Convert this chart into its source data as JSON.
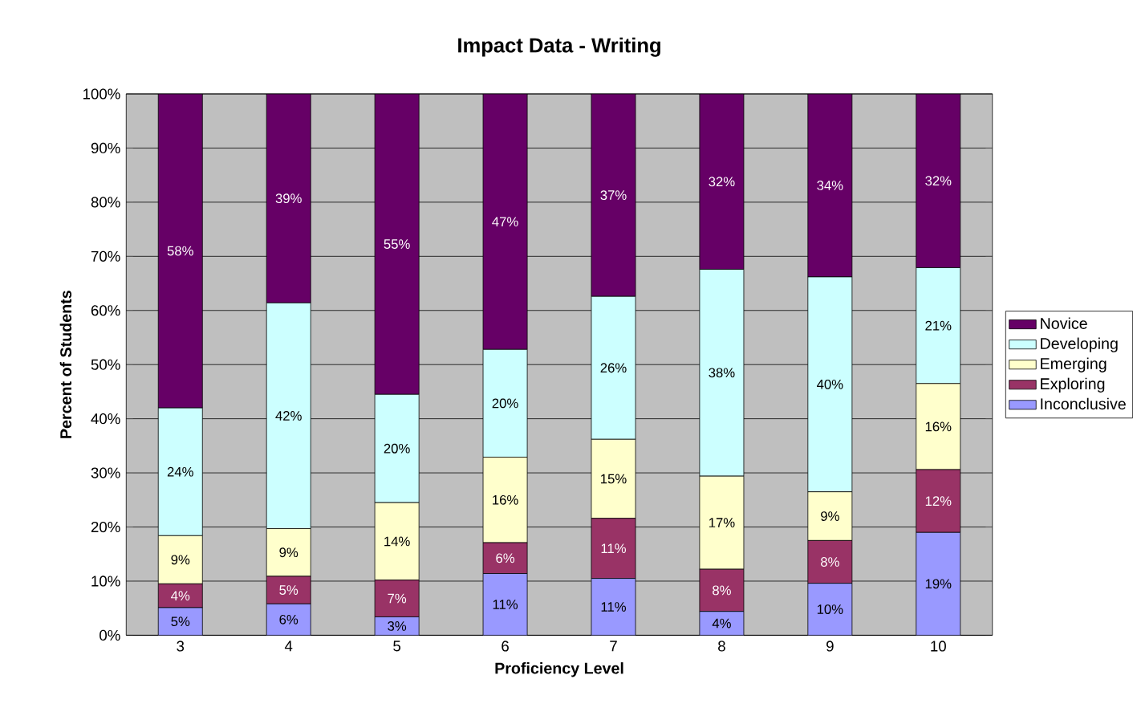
{
  "chart_data": {
    "type": "bar",
    "title": "Impact Data - Writing",
    "xlabel": "Proficiency Level",
    "ylabel": "Percent of Students",
    "categories": [
      "3",
      "4",
      "5",
      "6",
      "7",
      "8",
      "9",
      "10"
    ],
    "stacked": true,
    "series": [
      {
        "name": "Inconclusive",
        "color": "#9999ff",
        "values": [
          5.1,
          5.8,
          3.4,
          11.4,
          10.5,
          4.4,
          9.6,
          19.0
        ],
        "value_labels": [
          "5%",
          "6%",
          "3%",
          "11%",
          "11%",
          "4%",
          "10%",
          "19%"
        ]
      },
      {
        "name": "Exploring",
        "color": "#993366",
        "values": [
          4.4,
          5.1,
          6.8,
          5.7,
          11.1,
          7.8,
          7.9,
          11.6
        ],
        "value_labels": [
          "4%",
          "5%",
          "7%",
          "6%",
          "11%",
          "8%",
          "8%",
          "12%"
        ]
      },
      {
        "name": "Emerging",
        "color": "#ffffcc",
        "values": [
          8.9,
          8.8,
          14.3,
          15.8,
          14.6,
          17.2,
          9.0,
          15.9
        ],
        "value_labels": [
          "9%",
          "9%",
          "14%",
          "16%",
          "15%",
          "17%",
          "9%",
          "16%"
        ]
      },
      {
        "name": "Developing",
        "color": "#ccffff",
        "values": [
          23.6,
          41.7,
          20.0,
          19.9,
          26.4,
          38.2,
          39.7,
          21.4
        ],
        "value_labels": [
          "24%",
          "42%",
          "20%",
          "20%",
          "26%",
          "38%",
          "40%",
          "21%"
        ]
      },
      {
        "name": "Novice",
        "color": "#660066",
        "values": [
          58.0,
          38.6,
          55.5,
          47.2,
          37.4,
          32.4,
          33.8,
          32.1
        ],
        "value_labels": [
          "58%",
          "39%",
          "55%",
          "47%",
          "37%",
          "32%",
          "34%",
          "32%"
        ]
      }
    ],
    "ylim": [
      0,
      100
    ],
    "yticks": [
      {
        "value": 0,
        "label": "0%"
      },
      {
        "value": 10,
        "label": "10%"
      },
      {
        "value": 20,
        "label": "20%"
      },
      {
        "value": 30,
        "label": "30%"
      },
      {
        "value": 40,
        "label": "40%"
      },
      {
        "value": 50,
        "label": "50%"
      },
      {
        "value": 60,
        "label": "60%"
      },
      {
        "value": 70,
        "label": "70%"
      },
      {
        "value": 80,
        "label": "80%"
      },
      {
        "value": 90,
        "label": "90%"
      },
      {
        "value": 100,
        "label": "100%"
      }
    ],
    "grid": "y",
    "legend": "right"
  }
}
